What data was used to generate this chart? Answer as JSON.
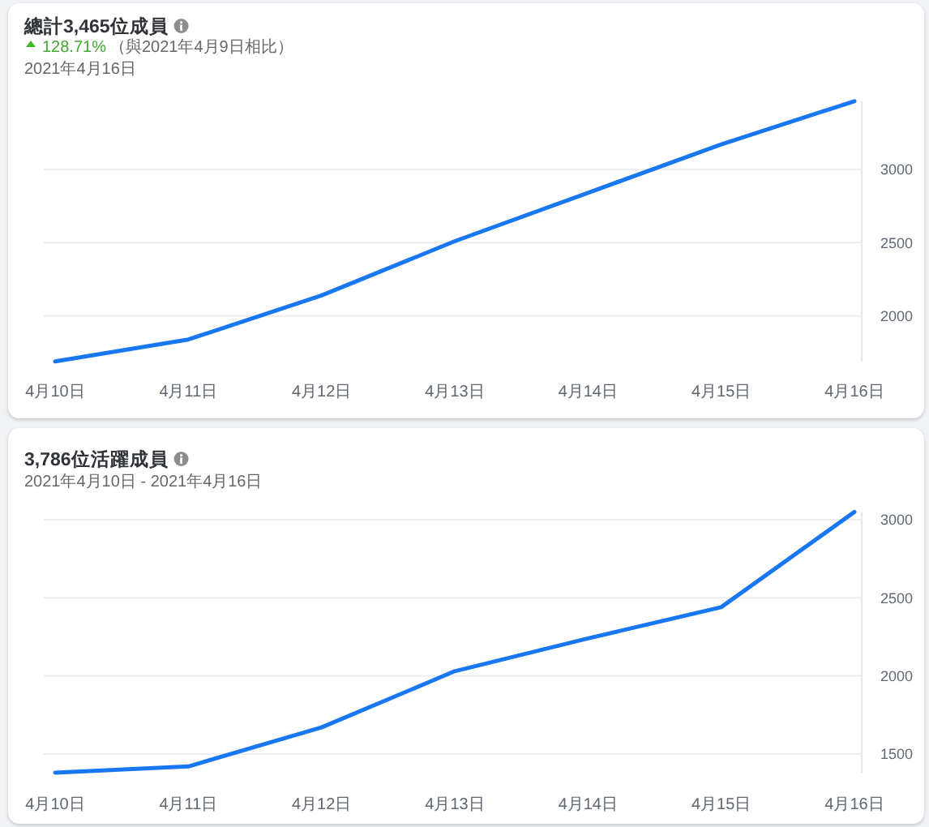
{
  "chart_data": [
    {
      "type": "line",
      "title": "總計3,465位成員",
      "annotations": [
        "128.71%",
        "（與2021年4月9日相比）"
      ],
      "subtitle": "2021年4月16日",
      "categories": [
        "4月10日",
        "4月11日",
        "4月12日",
        "4月13日",
        "4月14日",
        "4月15日",
        "4月16日"
      ],
      "series": [
        {
          "color": "#1877f2",
          "values": [
            1690,
            1840,
            2140,
            2510,
            2840,
            3170,
            3465
          ]
        }
      ],
      "ylim": [
        1690,
        3465
      ],
      "yticks": [
        2000,
        2500,
        3000
      ],
      "grid": "y"
    },
    {
      "type": "line",
      "title": "3,786位活躍成員",
      "subtitle": "2021年4月10日 - 2021年4月16日",
      "categories": [
        "4月10日",
        "4月11日",
        "4月12日",
        "4月13日",
        "4月14日",
        "4月15日",
        "4月16日"
      ],
      "series": [
        {
          "color": "#1877f2",
          "values": [
            1380,
            1420,
            1670,
            2030,
            2240,
            2440,
            3050
          ]
        }
      ],
      "ylim": [
        1380,
        3050
      ],
      "yticks": [
        1500,
        2000,
        2500,
        3000
      ],
      "grid": "y"
    }
  ]
}
